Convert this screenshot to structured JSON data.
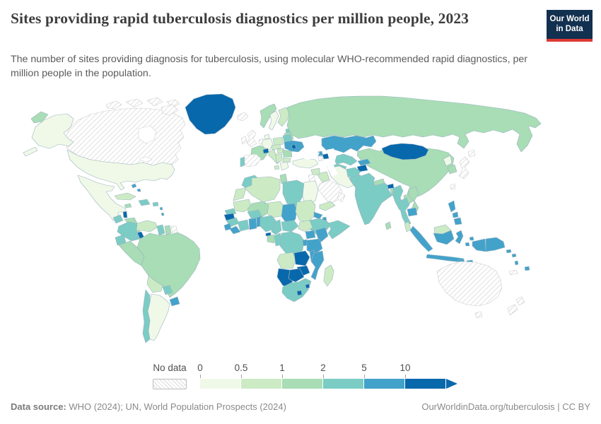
{
  "header": {
    "title": "Sites providing rapid tuberculosis diagnostics per million people, 2023",
    "subtitle": "The number of sites providing diagnosis for tuberculosis, using molecular WHO-recommended rapid diagnostics, per million people in the population.",
    "logo": {
      "line1": "Our World",
      "line2": "in Data",
      "bg": "#12304f",
      "accent": "#dc3a34"
    }
  },
  "legend": {
    "no_data_label": "No data",
    "tick_labels": [
      "0",
      "0.5",
      "1",
      "2",
      "5",
      "10"
    ]
  },
  "footer": {
    "source_label": "Data source:",
    "source_rest": " WHO (2024); UN, World Population Prospects (2024)",
    "credit": "OurWorldinData.org/tuberculosis | CC BY"
  },
  "chart_data": {
    "type": "choropleth",
    "title": "Sites providing rapid tuberculosis diagnostics per million people",
    "year": "2023",
    "unit": "sites per million people",
    "legend_position": "bottom",
    "bins": [
      {
        "label": "0-0.5",
        "color": "#f0f9e8"
      },
      {
        "label": "0.5-1",
        "color": "#ccebc5"
      },
      {
        "label": "1-2",
        "color": "#a8ddb5"
      },
      {
        "label": "2-5",
        "color": "#7bccc4"
      },
      {
        "label": "5-10",
        "color": "#43a2ca"
      },
      {
        "label": "10+",
        "color": "#0868ac"
      }
    ],
    "no_data": {
      "label": "No data",
      "style": "hatched"
    },
    "border_color": "#9db4c0",
    "regions": {
      "canada": "no-data",
      "iceland": "no-data",
      "united-kingdom": "no-data",
      "ireland": "no-data",
      "spain": "no-data",
      "netherlands-belgium": "no-data",
      "french-guiana": "no-data",
      "jordan-israel": "no-data",
      "saudi-arabia": "no-data",
      "oman": "no-data",
      "armenia": "no-data",
      "japan": "no-data",
      "taiwan": "no-data",
      "australia": "no-data",
      "new-zealand": "no-data",
      "new-caledonia": "no-data",
      "united-states": "0-0.5",
      "mexico": "0-0.5",
      "argentina": "0-0.5",
      "sweden": "0-0.5",
      "denmark": "0-0.5",
      "germany": "0-0.5",
      "greece": "0-0.5",
      "turkey": "0-0.5",
      "iran": "0-0.5",
      "egypt": "0-0.5",
      "north-korea": "0-0.5",
      "cuba": "0.5-1",
      "venezuela": "0.5-1",
      "bolivia": "0.5-1",
      "western-sahara": "0.5-1",
      "mauritania": "0.5-1",
      "algeria": "0.5-1",
      "niger": "0.5-1",
      "sudan": "0.5-1",
      "south-sudan": "0.5-1",
      "yemen": "0.5-1",
      "syria": "0.5-1",
      "iraq": "0.5-1",
      "italy": "0.5-1",
      "poland": "0.5-1",
      "finland": "0.5-1",
      "hungary": "0.5-1",
      "czech-austria": "0.5-1",
      "balkans": "0.5-1",
      "bulgaria": "0.5-1",
      "malaysia": "0.5-1",
      "angola": "0.5-1",
      "madagascar": "0.5-1",
      "russia": "1-2",
      "china": "1-2",
      "france": "1-2",
      "norway": "1-2",
      "latvia-lithuania": "1-2",
      "romania": "1-2",
      "peru": "1-2",
      "brazil": "1-2",
      "honduras": "1-2",
      "nicaragua": "1-2",
      "jamaica": "1-2",
      "mali": "1-2",
      "tunisia": "1-2",
      "gabon": "1-2",
      "suriname": "1-2",
      "nepal": "1-2",
      "bangladesh": "1-2",
      "sri-lanka": "1-2",
      "laos": "1-2",
      "vietnam": "1-2",
      "south-korea": "1-2",
      "portugal": "2-5",
      "belarus": "2-5",
      "estonia": "2-5",
      "morocco": "2-5",
      "libya": "2-5",
      "senegal": "2-5",
      "guinea": "2-5",
      "ivory-coast": "2-5",
      "burkina-faso": "2-5",
      "nigeria": "2-5",
      "cameroon": "2-5",
      "central-african-republic": "2-5",
      "congo": "2-5",
      "dr-congo": "2-5",
      "ethiopia": "2-5",
      "somalia": "2-5",
      "south-africa": "2-5",
      "india": "2-5",
      "pakistan": "2-5",
      "afghanistan": "2-5",
      "turkmenistan": "2-5",
      "uzbekistan": "2-5",
      "myanmar": "2-5",
      "thailand": "2-5",
      "guatemala": "2-5",
      "hispaniola": "2-5",
      "puerto-rico": "2-5",
      "colombia": "2-5",
      "ecuador": "2-5",
      "guyana": "2-5",
      "paraguay": "2-5",
      "chile": "2-5",
      "ukraine": "5-10",
      "kazakhstan": "5-10",
      "kyrgyzstan": "5-10",
      "georgia": "5-10",
      "cambodia": "5-10",
      "indonesia": "5-10",
      "philippines": "5-10",
      "papua-new-guinea": "5-10",
      "fiji": "5-10",
      "solomon-islands": "5-10",
      "vanuatu": "5-10",
      "chad": "5-10",
      "eritrea": "5-10",
      "djibouti": "5-10",
      "ghana": "5-10",
      "togo-benin": "5-10",
      "sierra-leone": "5-10",
      "liberia": "5-10",
      "uganda": "5-10",
      "kenya": "5-10",
      "tanzania": "5-10",
      "rwanda-burundi": "5-10",
      "malawi": "5-10",
      "mozambique": "5-10",
      "uruguay": "5-10",
      "bahamas": "5-10",
      "lesser-antilles": "5-10",
      "greenland": "10+",
      "mongolia": "10+",
      "bhutan": "10+",
      "switzerland": "10+",
      "moldova": "10+",
      "azerbaijan": "10+",
      "belize": "10+",
      "costa-rica": "10+",
      "panama": "10+",
      "equatorial-guinea": "10+",
      "gambia-guinea-bissau": "10+",
      "namibia": "10+",
      "botswana": "10+",
      "zambia": "10+",
      "zimbabwe": "10+",
      "lesotho": "10+",
      "eswatini": "10+",
      "tajikistan": "10+"
    }
  }
}
